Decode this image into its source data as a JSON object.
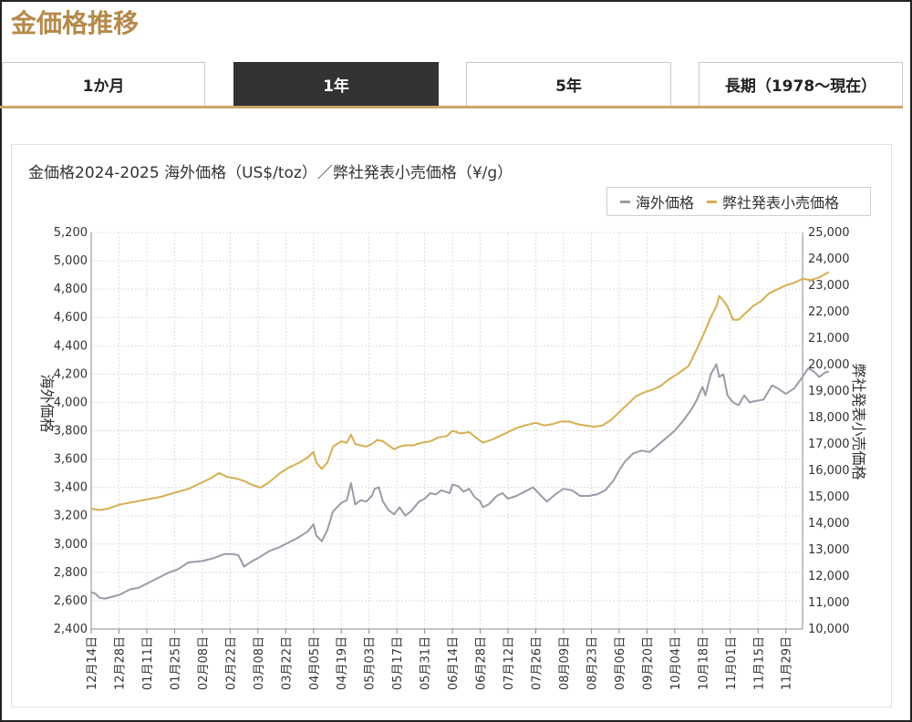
{
  "page": {
    "title": "金価格推移"
  },
  "tabs": [
    {
      "label": "1か月",
      "active": false
    },
    {
      "label": "1年",
      "active": true
    },
    {
      "label": "5年",
      "active": false
    },
    {
      "label": "長期（1978～現在）",
      "active": false
    }
  ],
  "colors": {
    "overseas": "#999ba8",
    "retail": "#d6ae52",
    "active_tab": "#333333",
    "title": "#b5894a"
  },
  "chart_data": {
    "type": "line",
    "title": "金価格2024-2025 海外価格（US$/toz）／弊社発表小売価格（¥/g）",
    "legend_position": "top-right",
    "grid": true,
    "y_left": {
      "label": "海外価格",
      "range": [
        2400,
        5200
      ],
      "ticks": [
        "2,400",
        "2,600",
        "2,800",
        "3,000",
        "3,200",
        "3,400",
        "3,600",
        "3,800",
        "4,000",
        "4,200",
        "4,400",
        "4,600",
        "4,800",
        "5,000",
        "5,200"
      ]
    },
    "y_right": {
      "label": "弊社発表小売価格",
      "range": [
        10000,
        25000
      ],
      "ticks": [
        "10,000",
        "11,000",
        "12,000",
        "13,000",
        "14,000",
        "15,000",
        "16,000",
        "17,000",
        "18,000",
        "19,000",
        "20,000",
        "21,000",
        "22,000",
        "23,000",
        "24,000",
        "25,000"
      ]
    },
    "x_ticks": [
      "12月14日",
      "12月28日",
      "01月11日",
      "01月25日",
      "02月08日",
      "02月22日",
      "03月08日",
      "03月22日",
      "04月05日",
      "04月19日",
      "05月03日",
      "05月17日",
      "05月31日",
      "06月14日",
      "06月28日",
      "07月12日",
      "07月26日",
      "08月09日",
      "08月23日",
      "09月06日",
      "09月20日",
      "10月04日",
      "10月18日",
      "11月01日",
      "11月15日",
      "11月29日"
    ],
    "series": [
      {
        "name": "海外価格",
        "axis": "left",
        "points": [
          [
            0,
            2660
          ],
          [
            0.15,
            2650
          ],
          [
            0.3,
            2620
          ],
          [
            0.5,
            2615
          ],
          [
            1,
            2640
          ],
          [
            1.4,
            2680
          ],
          [
            1.7,
            2690
          ],
          [
            2,
            2720
          ],
          [
            2.4,
            2760
          ],
          [
            2.8,
            2800
          ],
          [
            3.1,
            2820
          ],
          [
            3.5,
            2870
          ],
          [
            4,
            2880
          ],
          [
            4.4,
            2900
          ],
          [
            4.8,
            2930
          ],
          [
            5.1,
            2930
          ],
          [
            5.3,
            2920
          ],
          [
            5.5,
            2840
          ],
          [
            5.8,
            2880
          ],
          [
            6,
            2900
          ],
          [
            6.4,
            2950
          ],
          [
            6.8,
            2980
          ],
          [
            7.1,
            3010
          ],
          [
            7.4,
            3040
          ],
          [
            7.8,
            3090
          ],
          [
            8.0,
            3140
          ],
          [
            8.1,
            3060
          ],
          [
            8.3,
            3020
          ],
          [
            8.5,
            3100
          ],
          [
            8.7,
            3230
          ],
          [
            9.0,
            3290
          ],
          [
            9.2,
            3310
          ],
          [
            9.35,
            3430
          ],
          [
            9.5,
            3280
          ],
          [
            9.7,
            3310
          ],
          [
            9.9,
            3300
          ],
          [
            10.1,
            3340
          ],
          [
            10.2,
            3390
          ],
          [
            10.35,
            3400
          ],
          [
            10.5,
            3300
          ],
          [
            10.7,
            3240
          ],
          [
            10.9,
            3210
          ],
          [
            11.1,
            3260
          ],
          [
            11.3,
            3200
          ],
          [
            11.5,
            3230
          ],
          [
            11.8,
            3300
          ],
          [
            12.0,
            3320
          ],
          [
            12.2,
            3360
          ],
          [
            12.4,
            3350
          ],
          [
            12.6,
            3380
          ],
          [
            12.9,
            3360
          ],
          [
            13.0,
            3420
          ],
          [
            13.2,
            3410
          ],
          [
            13.4,
            3370
          ],
          [
            13.6,
            3390
          ],
          [
            13.8,
            3330
          ],
          [
            14.0,
            3300
          ],
          [
            14.1,
            3260
          ],
          [
            14.3,
            3280
          ],
          [
            14.6,
            3340
          ],
          [
            14.8,
            3360
          ],
          [
            15.0,
            3320
          ],
          [
            15.3,
            3340
          ],
          [
            15.6,
            3370
          ],
          [
            15.9,
            3400
          ],
          [
            16.1,
            3360
          ],
          [
            16.4,
            3300
          ],
          [
            16.7,
            3350
          ],
          [
            17.0,
            3390
          ],
          [
            17.3,
            3380
          ],
          [
            17.6,
            3340
          ],
          [
            17.9,
            3340
          ],
          [
            18.2,
            3350
          ],
          [
            18.5,
            3380
          ],
          [
            18.8,
            3450
          ],
          [
            19.0,
            3520
          ],
          [
            19.2,
            3580
          ],
          [
            19.5,
            3640
          ],
          [
            19.8,
            3660
          ],
          [
            20.1,
            3650
          ],
          [
            20.4,
            3700
          ],
          [
            20.7,
            3750
          ],
          [
            21.0,
            3800
          ],
          [
            21.3,
            3870
          ],
          [
            21.6,
            3950
          ],
          [
            21.8,
            4020
          ],
          [
            22.0,
            4110
          ],
          [
            22.1,
            4050
          ],
          [
            22.3,
            4200
          ],
          [
            22.5,
            4270
          ],
          [
            22.6,
            4180
          ],
          [
            22.75,
            4200
          ],
          [
            22.9,
            4050
          ],
          [
            23.1,
            4000
          ],
          [
            23.3,
            3980
          ],
          [
            23.5,
            4050
          ],
          [
            23.7,
            4000
          ],
          [
            23.9,
            4010
          ],
          [
            24.2,
            4020
          ],
          [
            24.5,
            4120
          ],
          [
            24.7,
            4100
          ],
          [
            25.0,
            4060
          ],
          [
            25.3,
            4100
          ],
          [
            25.6,
            4180
          ],
          [
            25.8,
            4240
          ],
          [
            26.0,
            4220
          ],
          [
            26.2,
            4180
          ],
          [
            26.4,
            4210
          ],
          [
            26.55,
            4220
          ]
        ]
      },
      {
        "name": "弊社発表小売価格",
        "axis": "right",
        "points": [
          [
            0,
            14550
          ],
          [
            0.3,
            14500
          ],
          [
            0.6,
            14550
          ],
          [
            1,
            14700
          ],
          [
            1.5,
            14800
          ],
          [
            2,
            14900
          ],
          [
            2.5,
            15000
          ],
          [
            3,
            15150
          ],
          [
            3.5,
            15300
          ],
          [
            3.9,
            15500
          ],
          [
            4.3,
            15700
          ],
          [
            4.6,
            15900
          ],
          [
            4.9,
            15750
          ],
          [
            5.2,
            15700
          ],
          [
            5.5,
            15600
          ],
          [
            5.8,
            15450
          ],
          [
            6.1,
            15350
          ],
          [
            6.4,
            15550
          ],
          [
            6.8,
            15900
          ],
          [
            7.1,
            16100
          ],
          [
            7.5,
            16300
          ],
          [
            7.8,
            16500
          ],
          [
            8.0,
            16700
          ],
          [
            8.1,
            16300
          ],
          [
            8.3,
            16050
          ],
          [
            8.5,
            16300
          ],
          [
            8.7,
            16900
          ],
          [
            9.0,
            17100
          ],
          [
            9.2,
            17050
          ],
          [
            9.35,
            17350
          ],
          [
            9.5,
            17000
          ],
          [
            9.7,
            16950
          ],
          [
            9.9,
            16900
          ],
          [
            10.1,
            17000
          ],
          [
            10.3,
            17150
          ],
          [
            10.5,
            17100
          ],
          [
            10.7,
            16950
          ],
          [
            10.9,
            16800
          ],
          [
            11.1,
            16900
          ],
          [
            11.3,
            16950
          ],
          [
            11.6,
            16950
          ],
          [
            11.9,
            17050
          ],
          [
            12.2,
            17100
          ],
          [
            12.5,
            17250
          ],
          [
            12.8,
            17300
          ],
          [
            13.0,
            17500
          ],
          [
            13.3,
            17400
          ],
          [
            13.6,
            17450
          ],
          [
            13.9,
            17200
          ],
          [
            14.1,
            17050
          ],
          [
            14.4,
            17150
          ],
          [
            14.7,
            17300
          ],
          [
            15.0,
            17450
          ],
          [
            15.3,
            17600
          ],
          [
            15.6,
            17700
          ],
          [
            16.0,
            17800
          ],
          [
            16.3,
            17700
          ],
          [
            16.6,
            17750
          ],
          [
            16.9,
            17850
          ],
          [
            17.2,
            17850
          ],
          [
            17.5,
            17750
          ],
          [
            17.8,
            17700
          ],
          [
            18.1,
            17650
          ],
          [
            18.4,
            17700
          ],
          [
            18.7,
            17900
          ],
          [
            19.0,
            18200
          ],
          [
            19.3,
            18500
          ],
          [
            19.6,
            18800
          ],
          [
            19.9,
            18950
          ],
          [
            20.2,
            19050
          ],
          [
            20.5,
            19200
          ],
          [
            20.8,
            19450
          ],
          [
            21.1,
            19650
          ],
          [
            21.5,
            19950
          ],
          [
            21.8,
            20600
          ],
          [
            22.1,
            21300
          ],
          [
            22.3,
            21800
          ],
          [
            22.5,
            22200
          ],
          [
            22.6,
            22600
          ],
          [
            22.8,
            22350
          ],
          [
            22.9,
            22200
          ],
          [
            23.1,
            21700
          ],
          [
            23.3,
            21700
          ],
          [
            23.5,
            21900
          ],
          [
            23.8,
            22200
          ],
          [
            24.1,
            22400
          ],
          [
            24.4,
            22700
          ],
          [
            24.7,
            22850
          ],
          [
            25.0,
            23000
          ],
          [
            25.3,
            23100
          ],
          [
            25.6,
            23250
          ],
          [
            25.9,
            23200
          ],
          [
            26.2,
            23300
          ],
          [
            26.55,
            23500
          ]
        ]
      }
    ]
  }
}
